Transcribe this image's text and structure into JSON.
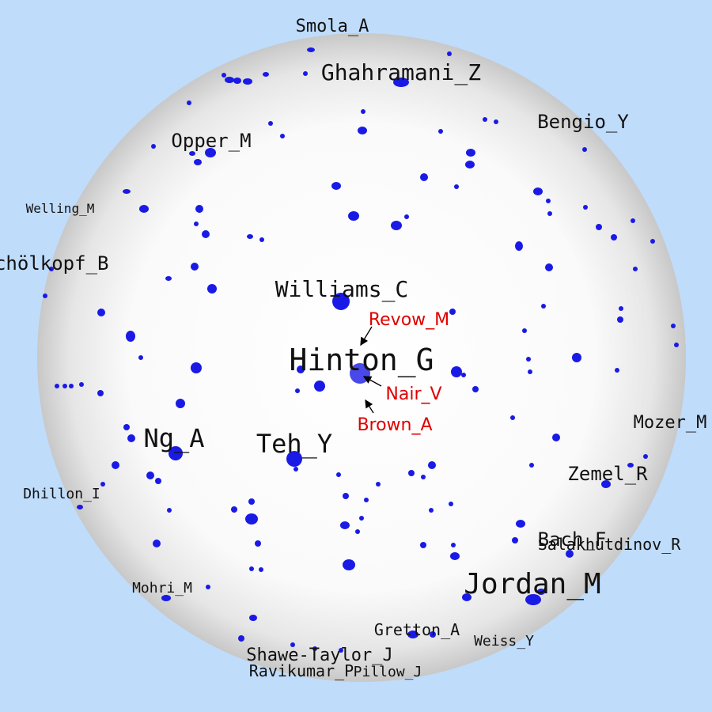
{
  "background_color": "#bfdcfb",
  "sphere_color": "#ffffff",
  "dot_color": "#1a1ae6",
  "highlight_color": "#e00000",
  "author_labels": {
    "smola": "Smola_A",
    "ghahramani": "Ghahramani_Z",
    "bengio": "Bengio_Y",
    "opper": "Opper_M",
    "welling": "Welling_M",
    "scholkopf": "Schölkopf_B",
    "williams": "Williams_C",
    "hinton": "Hinton_G",
    "ng": "Ng_A",
    "teh": "Teh_Y",
    "mozer": "Mozer_M",
    "zemel": "Zemel_R",
    "dhillon": "Dhillon_I",
    "bach": "Bach_F",
    "salakhutdinov": "Salakhutdinov_R",
    "jordan": "Jordan_M",
    "mohri": "Mohri_M",
    "gretton": "Gretton_A",
    "weiss": "Weiss_Y",
    "shawe_taylor": "Shawe-Taylor_J",
    "ravikumar": "Ravikumar_P",
    "pillow": "Pillow_J"
  },
  "highlighted_labels": {
    "revow": "Revow_M",
    "nair": "Nair_V",
    "brown": "Brown_A"
  }
}
